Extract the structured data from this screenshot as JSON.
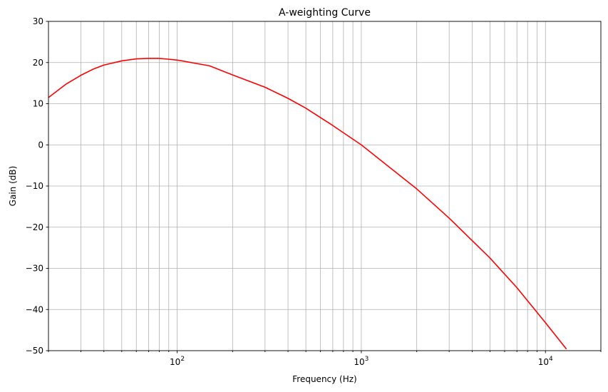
{
  "chart_data": {
    "type": "line",
    "title": "A-weighting Curve",
    "xlabel": "Frequency (Hz)",
    "ylabel": "Gain (dB)",
    "xscale": "log",
    "xlim": [
      20,
      20000
    ],
    "ylim": [
      -50,
      30
    ],
    "grid": true,
    "x_major_ticks": [
      100,
      1000,
      10000
    ],
    "x_major_tick_labels": [
      {
        "base": "10",
        "exp": "2"
      },
      {
        "base": "10",
        "exp": "3"
      },
      {
        "base": "10",
        "exp": "4"
      }
    ],
    "y_ticks": [
      -50,
      -40,
      -30,
      -20,
      -10,
      0,
      10,
      20,
      30
    ],
    "y_tick_labels": [
      "−50",
      "−40",
      "−30",
      "−20",
      "−10",
      "0",
      "10",
      "20",
      "30"
    ],
    "series": [
      {
        "name": "A-weighting",
        "color": "#ff0000",
        "x": [
          20,
          25,
          30,
          35,
          40,
          50,
          60,
          70,
          80,
          90,
          100,
          150,
          200,
          300,
          400,
          500,
          700,
          1000,
          2000,
          3000,
          5000,
          7000,
          10000,
          13000
        ],
        "y": [
          11.5,
          14.8,
          16.9,
          18.4,
          19.4,
          20.4,
          20.9,
          21.0,
          21.0,
          20.8,
          20.6,
          19.2,
          17.0,
          14.0,
          11.3,
          8.9,
          4.7,
          0.0,
          -10.7,
          -17.8,
          -27.5,
          -34.7,
          -43.2,
          -49.6
        ]
      }
    ]
  }
}
